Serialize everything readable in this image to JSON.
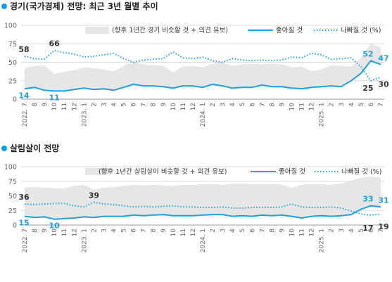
{
  "colors": {
    "good": "#1ea0dc",
    "bad": "#1ea0dc",
    "neutral": "#e6e6e6",
    "accent": "#0a9fe0"
  },
  "x_labels": [
    "2022. 7",
    "8",
    "9",
    "10",
    "11",
    "12",
    "2023. 1",
    "2",
    "3",
    "4",
    "5",
    "6",
    "7",
    "8",
    "9",
    "10",
    "11",
    "12",
    "2024. 1",
    "2",
    "3",
    "4",
    "5",
    "6",
    "7",
    "8",
    "9",
    "10",
    "11",
    "12",
    "2025. 1",
    "2",
    "3",
    "4",
    "5",
    "6",
    "7"
  ],
  "chart_data": [
    {
      "type": "line",
      "title": "경기(국가경제) 전망: 최근 3년 월별 추이",
      "ylim": [
        0,
        100
      ],
      "yticks": [
        0,
        25,
        50,
        75,
        100
      ],
      "legend": [
        "(향후 1년간 경기 비슷할 것 + 의견 유보)",
        "좋아질 것",
        "나빠질 것 (%)"
      ],
      "series": [
        {
          "name": "좋아질 것",
          "style": "solid",
          "values": [
            14,
            16,
            12,
            11,
            11,
            13,
            15,
            13,
            14,
            12,
            16,
            20,
            18,
            18,
            17,
            15,
            18,
            18,
            16,
            20,
            18,
            15,
            16,
            16,
            19,
            17,
            17,
            15,
            14,
            16,
            17,
            18,
            17,
            25,
            35,
            52,
            47
          ],
          "labels": [
            {
              "i": 0,
              "text": "14"
            },
            {
              "i": 3,
              "text": "11"
            },
            {
              "i": 35,
              "text": "52"
            },
            {
              "i": 36,
              "text": "47"
            }
          ]
        },
        {
          "name": "나빠질 것",
          "style": "dotted",
          "values": [
            58,
            55,
            54,
            66,
            63,
            61,
            57,
            58,
            60,
            62,
            55,
            50,
            53,
            54,
            55,
            64,
            56,
            55,
            57,
            52,
            50,
            55,
            53,
            52,
            53,
            52,
            53,
            57,
            56,
            62,
            60,
            54,
            55,
            56,
            44,
            25,
            30
          ],
          "labels": [
            {
              "i": 0,
              "text": "58"
            },
            {
              "i": 3,
              "text": "66"
            },
            {
              "i": 35,
              "text": "25"
            },
            {
              "i": 36,
              "text": "30"
            }
          ]
        }
      ]
    },
    {
      "type": "line",
      "title": "살림살이 전망",
      "ylim": [
        0,
        100
      ],
      "yticks": [
        0,
        25,
        50,
        75,
        100
      ],
      "legend": [
        "(향후 1년간 살림살이 비슷할 것 + 의견 유보)",
        "좋아질 것",
        "나빠질 것 (%)"
      ],
      "series": [
        {
          "name": "좋아질 것",
          "style": "solid",
          "values": [
            15,
            13,
            14,
            10,
            11,
            12,
            14,
            13,
            15,
            15,
            15,
            17,
            16,
            17,
            18,
            16,
            16,
            16,
            17,
            18,
            18,
            15,
            16,
            15,
            17,
            16,
            17,
            15,
            12,
            15,
            16,
            15,
            16,
            18,
            27,
            33,
            31
          ],
          "labels": [
            {
              "i": 0,
              "text": "15"
            },
            {
              "i": 3,
              "text": "10"
            },
            {
              "i": 35,
              "text": "33"
            },
            {
              "i": 36,
              "text": "31"
            }
          ]
        },
        {
          "name": "나빠질 것",
          "style": "dotted",
          "values": [
            36,
            35,
            36,
            37,
            37,
            33,
            31,
            39,
            36,
            35,
            33,
            31,
            32,
            31,
            32,
            33,
            31,
            31,
            30,
            30,
            31,
            29,
            29,
            30,
            30,
            30,
            31,
            36,
            31,
            30,
            30,
            31,
            29,
            24,
            19,
            17,
            19
          ],
          "labels": [
            {
              "i": 0,
              "text": "36"
            },
            {
              "i": 7,
              "text": "39"
            },
            {
              "i": 35,
              "text": "17"
            },
            {
              "i": 36,
              "text": "19"
            }
          ]
        }
      ]
    }
  ]
}
